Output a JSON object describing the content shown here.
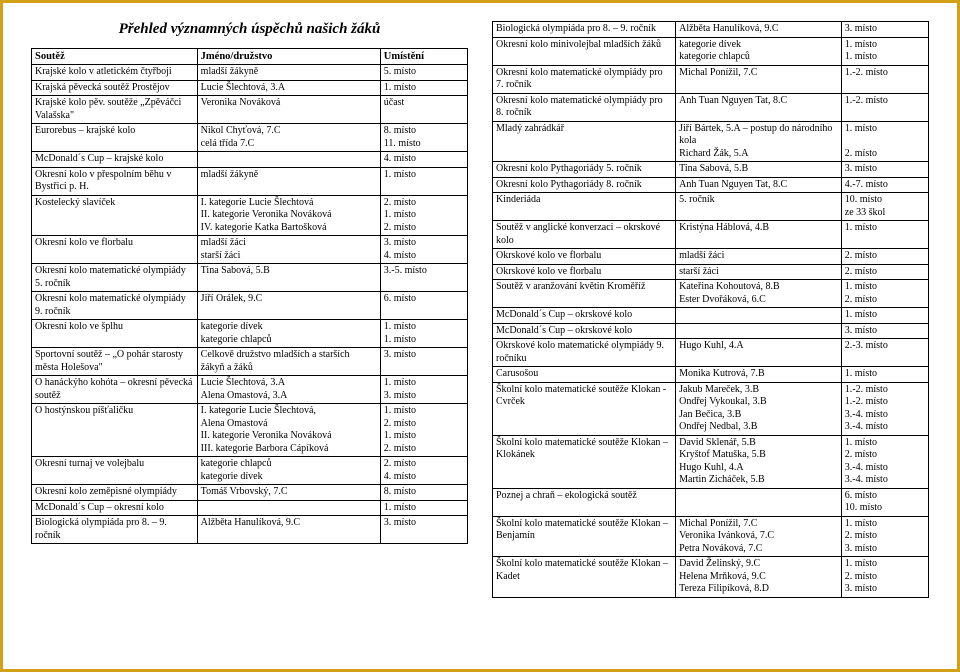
{
  "title": "Přehled významných úspěchů našich žáků",
  "left_headers": {
    "c1": "Soutěž",
    "c2": "Jméno/družstvo",
    "c3": "Umístění"
  },
  "left_rows": [
    {
      "c1": "Krajské kolo v atletickém čtyřboji",
      "c2": "mladší žákyně",
      "c3": "5. místo"
    },
    {
      "c1": "Krajská pěvecká soutěž Prostějov",
      "c2": "Lucie Šlechtová, 3.A",
      "c3": "1. místo"
    },
    {
      "c1": "Krajské kolo pěv. soutěže „Zpěváčci Valašska\"",
      "c2": "Veronika Nováková",
      "c3": "účast"
    },
    {
      "c1": "Eurorebus – krajské kolo",
      "c2": "Nikol Chyťová, 7.C\ncelá třída 7.C",
      "c3": "8. místo\n11. místo"
    },
    {
      "c1": "McDonald´s Cup – krajské kolo",
      "c2": "",
      "c3": "4. místo"
    },
    {
      "c1": "Okresní kolo v přespolním běhu v Bystřici p. H.",
      "c2": "mladší žákyně",
      "c3": "1. místo"
    },
    {
      "c1": "Kostelecký slavíček",
      "c2": "I. kategorie     Lucie Šlechtová\nII. kategorie    Veronika Nováková\nIV. kategorie   Katka Bartošková",
      "c3": "2. místo\n1. místo\n2. místo"
    },
    {
      "c1": "Okresní kolo ve florbalu",
      "c2": "mladší žáci\nstarší žáci",
      "c3": "3. místo\n4. místo"
    },
    {
      "c1": "Okresní kolo matematické olympiády 5. ročník",
      "c2": "Tina Sabová, 5.B",
      "c3": "3.-5. místo"
    },
    {
      "c1": "Okresní kolo matematické olympiády 9. ročník",
      "c2": "Jiří Orálek, 9.C",
      "c3": "6. místo"
    },
    {
      "c1": "Okresní kolo ve šplhu",
      "c2": "kategorie dívek\nkategorie chlapců",
      "c3": "1. místo\n1. místo"
    },
    {
      "c1": "Sportovní soutěž – „O pohár starosty města Holešova\"",
      "c2": "Celkově družstvo mladších a starších\nžákyň a žáků",
      "c3": "3. místo"
    },
    {
      "c1": "O hanáckýho kohóta – okresní pěvecká soutěž",
      "c2": "Lucie Šlechtová, 3.A\nAlena Omastová, 3.A",
      "c3": "1. místo\n3. místo"
    },
    {
      "c1": "O hostýnskou píšťaličku",
      "c2": "I. kategorie     Lucie Šlechtová,\n                     Alena Omastová\nII. kategorie    Veronika Nováková\nIII. kategorie   Barbora Cápíková",
      "c3": "1. místo\n2. místo\n1. místo\n2. místo"
    },
    {
      "c1": "Okresní turnaj ve volejbalu",
      "c2": "kategorie chlapců\nkategorie dívek",
      "c3": "2. místo\n4. místo"
    },
    {
      "c1": "Okresní kolo zeměpisné olympiády",
      "c2": "Tomáš Vrbovský, 7.C",
      "c3": "8. místo"
    },
    {
      "c1": "McDonald´s Cup – okresní kolo",
      "c2": "",
      "c3": "1. místo"
    },
    {
      "c1": "Biologická olympiáda pro 8. – 9. ročník",
      "c2": "Alžběta Hanulíková, 9.C",
      "c3": "3. místo"
    }
  ],
  "right_rows": [
    {
      "c1": "Biologická olympiáda pro 8. – 9. ročník",
      "c2": "Alžběta Hanulíková, 9.C",
      "c3": "3. místo"
    },
    {
      "c1": "Okresní kolo minivolejbal mladších žáků",
      "c2": "kategorie dívek\nkategorie chlapců",
      "c3": "1. místo\n1. místo"
    },
    {
      "c1": "Okresní kolo matematické olympiády pro 7. ročník",
      "c2": "Michal Ponížil, 7.C",
      "c3": "1.-2. místo"
    },
    {
      "c1": "Okresní kolo matematické olympiády pro 8. ročník",
      "c2": "Anh Tuan Nguyen Tat, 8.C",
      "c3": "1.-2. místo"
    },
    {
      "c1": "Mladý zahrádkář",
      "c2": "Jiří Bártek, 5.A – postup do národního kola\nRichard Žák, 5.A",
      "c3": "1. místo\n\n2. místo"
    },
    {
      "c1": "Okresní kolo Pythagoriády 5. ročník",
      "c2": "Tina Sabová, 5.B",
      "c3": "3. místo"
    },
    {
      "c1": "Okresní kolo Pythagoriády 8. ročník",
      "c2": "Anh Tuan Nguyen Tat, 8.C",
      "c3": "4.-7. místo"
    },
    {
      "c1": "Kinderiáda",
      "c2": "5. ročník",
      "c3": "10. místo\nze 33 škol"
    },
    {
      "c1": "Soutěž v anglické konverzaci – okrskové kolo",
      "c2": "Kristýna Háblová, 4.B",
      "c3": "1. místo"
    },
    {
      "c1": "Okrskové kolo ve florbalu",
      "c2": "mladší žáci",
      "c3": "2. místo"
    },
    {
      "c1": "Okrskové kolo ve florbalu",
      "c2": "starší žáci",
      "c3": "2. místo"
    },
    {
      "c1": "Soutěž v aranžování květin Kroměříž",
      "c2": "Kateřina Kohoutová, 8.B\nEster Dvořáková, 6.C",
      "c3": "1. místo\n2. místo"
    },
    {
      "c1": "McDonald´s Cup – okrskové kolo",
      "c2": "",
      "c3": "1. místo"
    },
    {
      "c1": "McDonald´s Cup – okrskové kolo",
      "c2": "",
      "c3": "3. místo"
    },
    {
      "c1": "Okrskové kolo matematické olympiády 9. ročníku",
      "c2": "Hugo Kuhl, 4.A",
      "c3": "2.-3. místo"
    },
    {
      "c1": "Carusošou",
      "c2": "Monika Kutrová, 7.B",
      "c3": "1. místo"
    },
    {
      "c1": "Školní kolo matematické soutěže Klokan - Cvrček",
      "c2": "Jakub Mareček, 3.B\nOndřej Vykoukal, 3.B\nJan Bečica, 3.B\nOndřej Nedbal, 3.B",
      "c3": "1.-2. místo\n1.-2. místo\n3.-4. místo\n3.-4. místo"
    },
    {
      "c1": "Školní kolo matematické soutěže Klokan – Klokánek",
      "c2": "David Sklenář, 5.B\nKryštof Matuška, 5.B\nHugo Kuhl, 4.A\nMartin Zicháček, 5.B",
      "c3": "1. místo\n2. místo\n3.-4. místo\n3.-4. místo"
    },
    {
      "c1": "Poznej a chraň – ekologická soutěž",
      "c2": "",
      "c3": "6. místo\n10. místo"
    },
    {
      "c1": "Školní kolo matematické soutěže Klokan – Benjamín",
      "c2": "Michal Ponížil, 7.C\nVeronika Ivánková, 7.C\nPetra Nováková, 7.C",
      "c3": "1. místo\n2. místo\n3. místo"
    },
    {
      "c1": "Školní kolo matematické soutěže Klokan – Kadet",
      "c2": "David Želinský, 9.C\nHelena Mrňková, 9.C\nTereza Filipíková, 8.D",
      "c3": "1. místo\n2. místo\n3. místo"
    }
  ]
}
